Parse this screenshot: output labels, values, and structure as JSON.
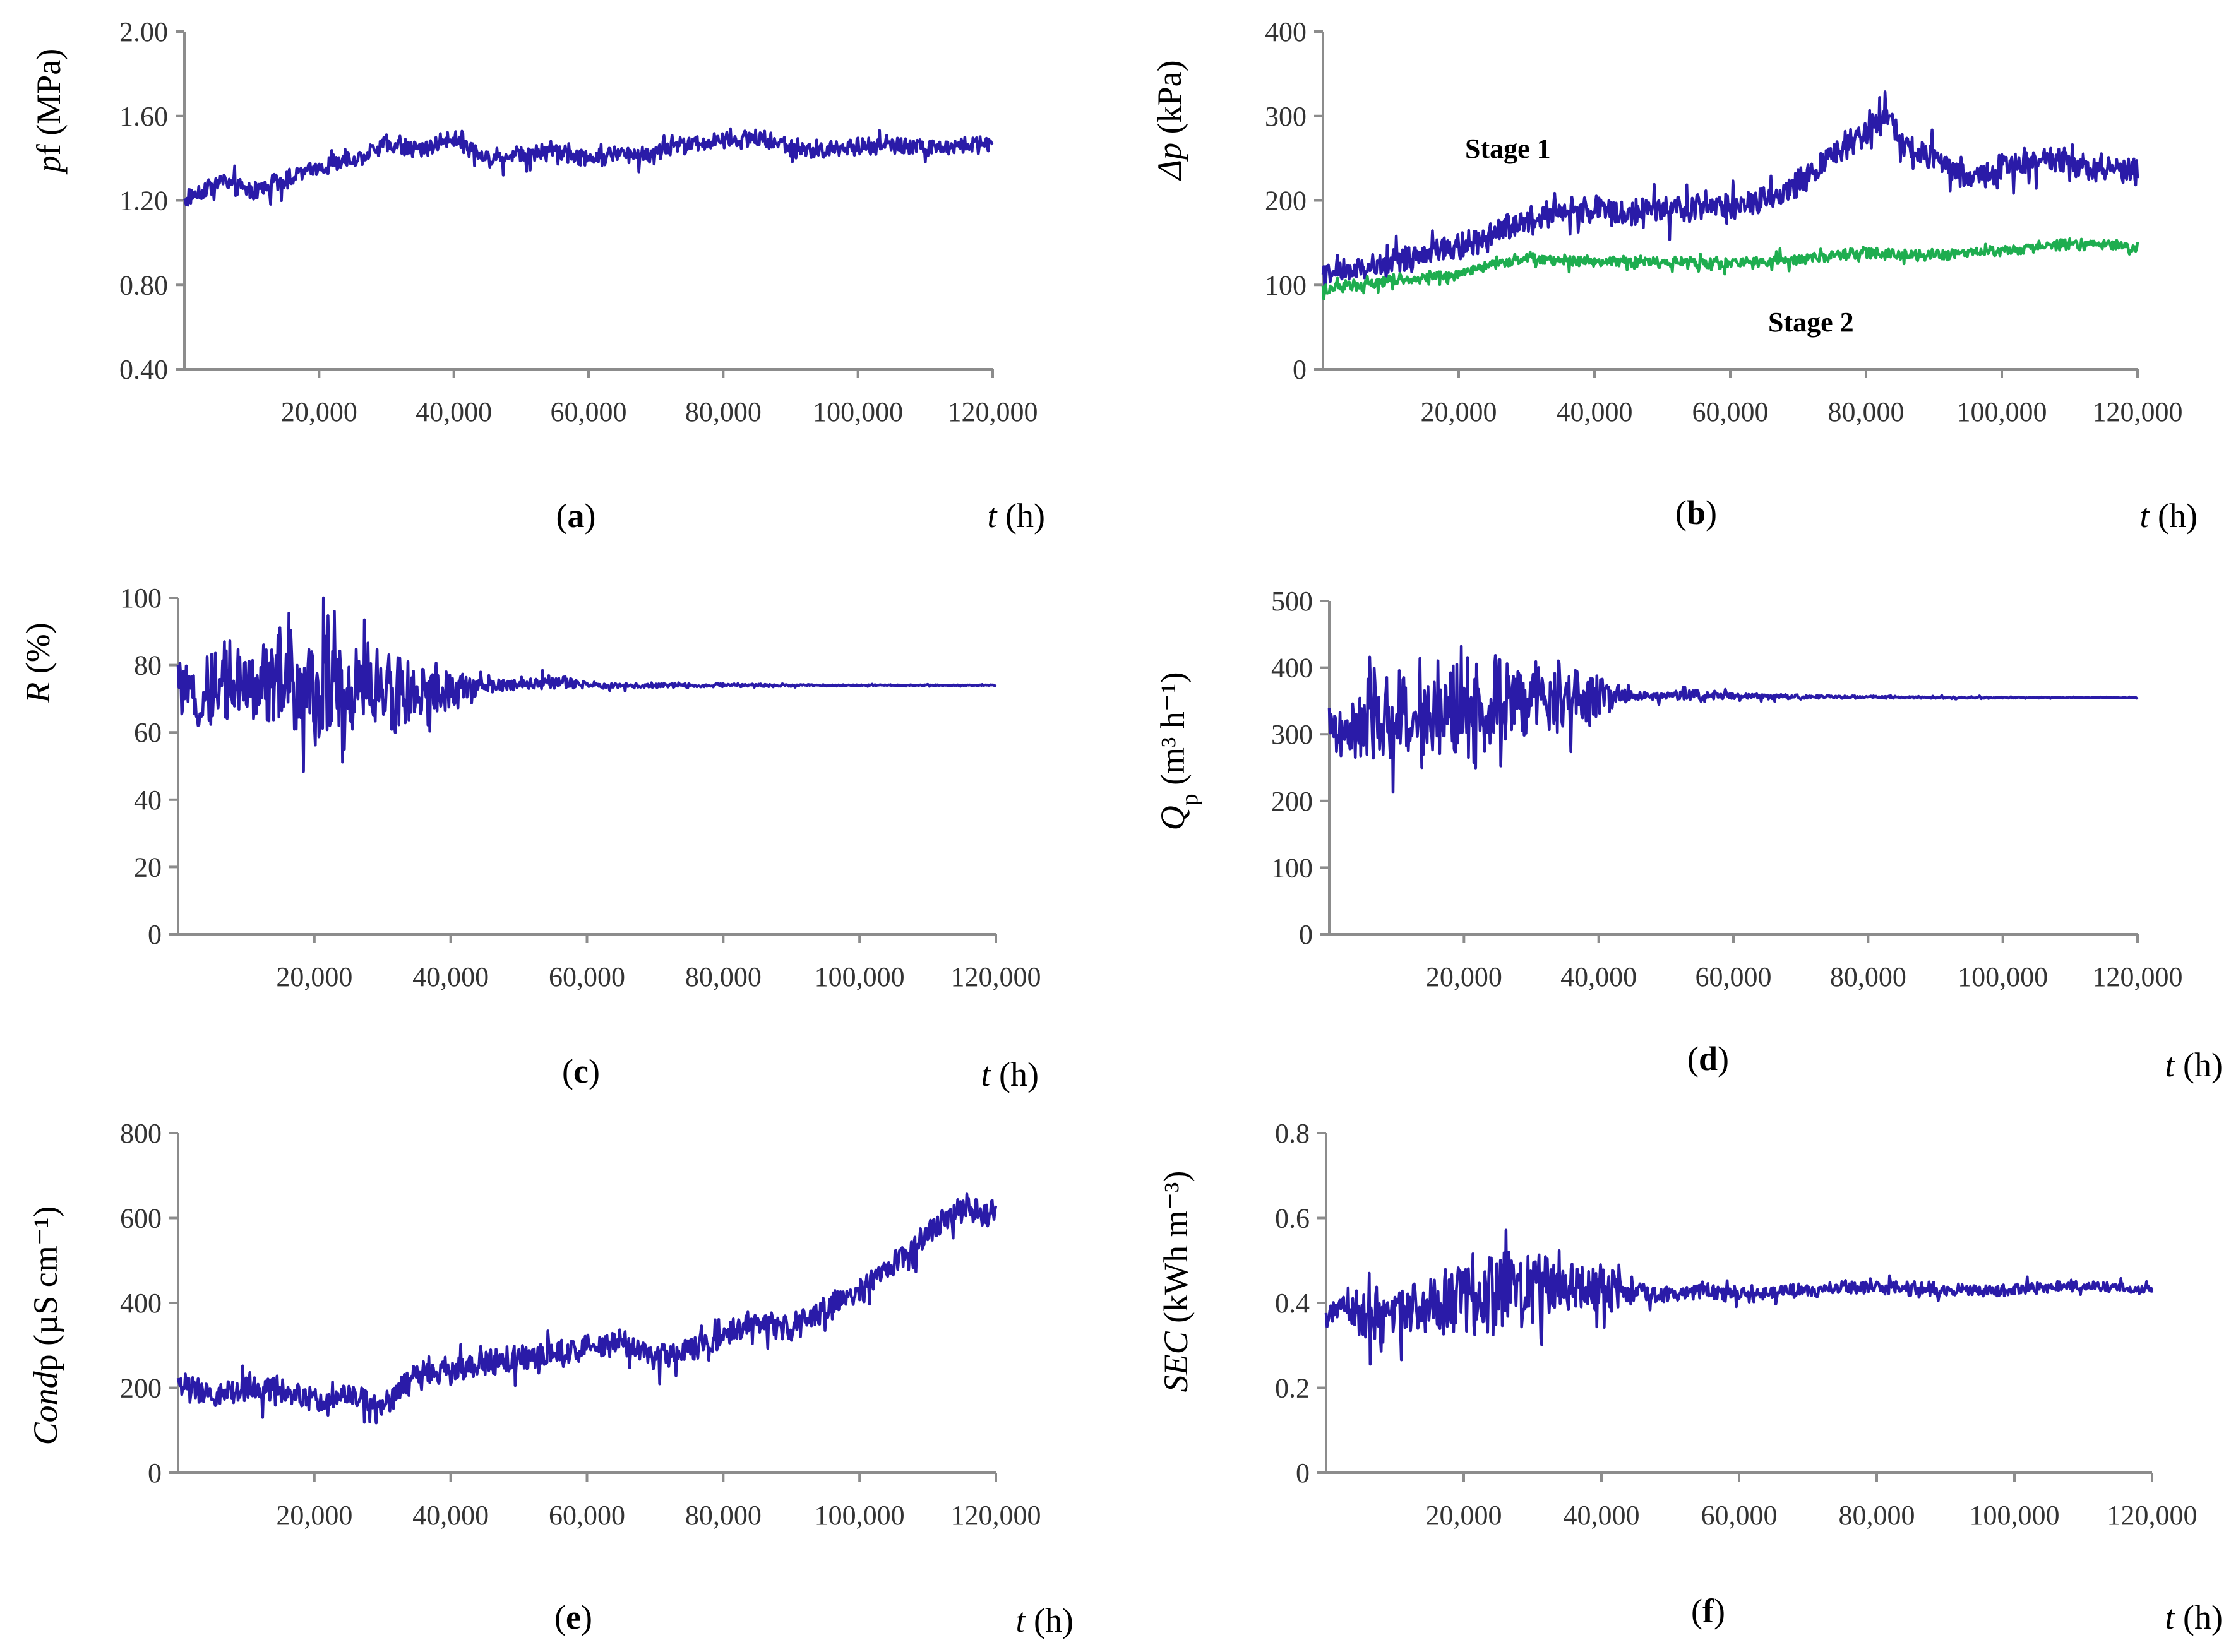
{
  "colors": {
    "series_blue": "#2a1ba8",
    "series_green": "#1ead4f",
    "axis": "#8c8c8c"
  },
  "chart_data": [
    {
      "id": "a",
      "type": "line",
      "caption": "(a)",
      "caption_letter": "a",
      "ylabel_italic": "p",
      "ylabel_rest": "f (MPa)",
      "xlabel_italic": "t",
      "xlabel_rest": " (h)",
      "xlim": [
        0,
        120000
      ],
      "ylim": [
        0.4,
        2.0
      ],
      "yticks": [
        "2.00",
        "1.60",
        "1.20",
        "0.80",
        "0.40"
      ],
      "xticks": [
        "20,000",
        "40,000",
        "60,000",
        "80,000",
        "100,000",
        "120,000"
      ],
      "series": [
        {
          "name": "pf",
          "color": "#2a1ba8",
          "x": [
            0,
            2000,
            6000,
            10000,
            15000,
            20000,
            25000,
            30000,
            35000,
            40000,
            45000,
            50000,
            55000,
            60000,
            65000,
            70000,
            75000,
            80000,
            85000,
            90000,
            95000,
            100000,
            105000,
            110000,
            115000,
            120000
          ],
          "y": [
            1.2,
            1.24,
            1.29,
            1.24,
            1.3,
            1.36,
            1.39,
            1.47,
            1.44,
            1.5,
            1.4,
            1.42,
            1.44,
            1.4,
            1.42,
            1.43,
            1.47,
            1.48,
            1.5,
            1.45,
            1.44,
            1.46,
            1.47,
            1.45,
            1.46,
            1.47
          ],
          "noise": 0.08
        }
      ]
    },
    {
      "id": "b",
      "type": "line",
      "caption": "(b)",
      "caption_letter": "b",
      "ylabel_italic": "Δp",
      "ylabel_rest": " (kPa)",
      "xlabel_italic": "t",
      "xlabel_rest": " (h)",
      "xlim": [
        0,
        120000
      ],
      "ylim": [
        0,
        400
      ],
      "yticks": [
        "400",
        "300",
        "200",
        "100",
        "0"
      ],
      "xticks": [
        "20,000",
        "40,000",
        "60,000",
        "80,000",
        "100,000",
        "120,000"
      ],
      "annotations": [
        "Stage 1",
        "Stage 2"
      ],
      "series": [
        {
          "name": "Stage 1",
          "color": "#2a1ba8",
          "x": [
            0,
            5000,
            10000,
            15000,
            20000,
            25000,
            30000,
            35000,
            40000,
            45000,
            50000,
            55000,
            60000,
            65000,
            70000,
            75000,
            80000,
            83000,
            86000,
            90000,
            95000,
            100000,
            105000,
            110000,
            115000,
            120000
          ],
          "y": [
            110,
            118,
            125,
            135,
            145,
            160,
            180,
            185,
            190,
            185,
            188,
            192,
            190,
            200,
            220,
            255,
            280,
            305,
            260,
            250,
            225,
            240,
            250,
            245,
            238,
            235
          ],
          "noise": 30
        },
        {
          "name": "Stage 2",
          "color": "#1ead4f",
          "x": [
            0,
            5000,
            10000,
            15000,
            20000,
            25000,
            30000,
            40000,
            50000,
            60000,
            70000,
            80000,
            90000,
            100000,
            110000,
            120000
          ],
          "y": [
            95,
            100,
            105,
            108,
            112,
            125,
            130,
            128,
            127,
            126,
            130,
            138,
            135,
            140,
            148,
            145
          ],
          "noise": 12
        }
      ]
    },
    {
      "id": "c",
      "type": "line",
      "caption": "(c)",
      "caption_letter": "c",
      "ylabel_italic": "R",
      "ylabel_rest": " (%)",
      "xlabel_italic": "t",
      "xlabel_rest": " (h)",
      "xlim": [
        0,
        120000
      ],
      "ylim": [
        0,
        100
      ],
      "yticks": [
        "100",
        "80",
        "60",
        "40",
        "20",
        "0"
      ],
      "xticks": [
        "20,000",
        "40,000",
        "60,000",
        "80,000",
        "100,000",
        "120,000"
      ],
      "series": [
        {
          "name": "R",
          "color": "#2a1ba8",
          "x": [
            0,
            3000,
            6000,
            10000,
            15000,
            20000,
            25000,
            30000,
            35000,
            40000,
            45000,
            50000,
            55000,
            60000,
            70000,
            80000,
            90000,
            100000,
            110000,
            120000
          ],
          "y": [
            75,
            68,
            75,
            74,
            73,
            72,
            73,
            72,
            71,
            72,
            74,
            74,
            75,
            74,
            74,
            74,
            74,
            74,
            74,
            74
          ],
          "noise": [
            14,
            12,
            22,
            24,
            26,
            30,
            30,
            22,
            20,
            12,
            4,
            3,
            4,
            2,
            1.5,
            1,
            0.6,
            0.4,
            0.3,
            0.3
          ]
        }
      ]
    },
    {
      "id": "d",
      "type": "line",
      "caption": "(d)",
      "caption_letter": "d",
      "ylabel_italic": "Q",
      "ylabel_sub": "p",
      "ylabel_rest": " (m³ h⁻¹)",
      "xlabel_italic": "t",
      "xlabel_rest": " (h)",
      "xlim": [
        0,
        120000
      ],
      "ylim": [
        0,
        500
      ],
      "yticks": [
        "500",
        "400",
        "300",
        "200",
        "100",
        "0"
      ],
      "xticks": [
        "20,000",
        "40,000",
        "60,000",
        "80,000",
        "100,000",
        "120,000"
      ],
      "series": [
        {
          "name": "Qp",
          "color": "#2a1ba8",
          "x": [
            0,
            2000,
            6000,
            10000,
            15000,
            20000,
            25000,
            30000,
            35000,
            40000,
            45000,
            50000,
            55000,
            60000,
            70000,
            80000,
            90000,
            100000,
            110000,
            120000
          ],
          "y": [
            320,
            290,
            320,
            325,
            330,
            335,
            345,
            350,
            355,
            355,
            358,
            357,
            360,
            357,
            356,
            356,
            355,
            355,
            355,
            355
          ],
          "noise": [
            60,
            50,
            120,
            130,
            130,
            150,
            150,
            120,
            110,
            60,
            15,
            10,
            20,
            8,
            6,
            4,
            3,
            2,
            1,
            1
          ]
        }
      ]
    },
    {
      "id": "e",
      "type": "line",
      "caption": "(e)",
      "caption_letter": "e",
      "ylabel_italic": "Cond",
      "ylabel_rest": "p (µS cm⁻¹)",
      "xlabel_italic": "t",
      "xlabel_rest": " (h)",
      "xlim": [
        0,
        120000
      ],
      "ylim": [
        0,
        800
      ],
      "yticks": [
        "800",
        "600",
        "400",
        "200",
        "0"
      ],
      "xticks": [
        "20,000",
        "40,000",
        "60,000",
        "80,000",
        "100,000",
        "120,000"
      ],
      "series": [
        {
          "name": "Condp",
          "color": "#2a1ba8",
          "x": [
            0,
            5000,
            10000,
            15000,
            20000,
            25000,
            30000,
            35000,
            40000,
            45000,
            50000,
            55000,
            60000,
            65000,
            70000,
            75000,
            80000,
            85000,
            90000,
            95000,
            100000,
            105000,
            110000,
            115000,
            120000
          ],
          "y": [
            205,
            180,
            205,
            200,
            175,
            185,
            160,
            230,
            240,
            255,
            270,
            275,
            300,
            305,
            270,
            290,
            320,
            355,
            340,
            390,
            430,
            490,
            560,
            620,
            610
          ],
          "noise": 60
        }
      ]
    },
    {
      "id": "f",
      "type": "line",
      "caption": "(f)",
      "caption_letter": "f",
      "ylabel_italic": "SEC",
      "ylabel_rest": " (kWh m⁻³)",
      "xlabel_italic": "t",
      "xlabel_rest": " (h)",
      "xlim": [
        0,
        120000
      ],
      "ylim": [
        0,
        0.8
      ],
      "yticks": [
        "0.8",
        "0.6",
        "0.4",
        "0.2",
        "0"
      ],
      "xticks": [
        "20,000",
        "40,000",
        "60,000",
        "80,000",
        "100,000",
        "120,000"
      ],
      "series": [
        {
          "name": "SEC",
          "color": "#2a1ba8",
          "x": [
            0,
            2000,
            6000,
            10000,
            15000,
            20000,
            25000,
            30000,
            35000,
            40000,
            45000,
            50000,
            55000,
            60000,
            70000,
            80000,
            90000,
            100000,
            110000,
            120000
          ],
          "y": [
            0.36,
            0.4,
            0.37,
            0.38,
            0.4,
            0.41,
            0.43,
            0.44,
            0.44,
            0.43,
            0.42,
            0.42,
            0.43,
            0.42,
            0.43,
            0.44,
            0.43,
            0.43,
            0.44,
            0.43
          ],
          "noise": [
            0.06,
            0.05,
            0.14,
            0.12,
            0.14,
            0.18,
            0.2,
            0.16,
            0.14,
            0.12,
            0.05,
            0.04,
            0.04,
            0.04,
            0.03,
            0.03,
            0.03,
            0.03,
            0.02,
            0.02
          ]
        }
      ]
    }
  ]
}
